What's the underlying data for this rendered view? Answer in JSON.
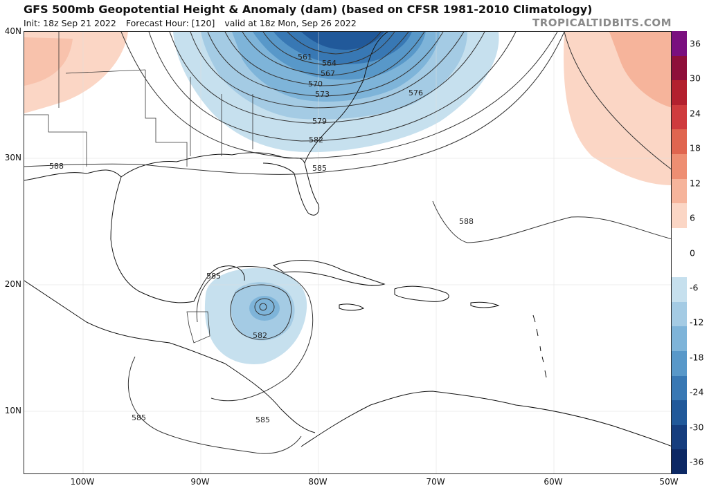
{
  "header": {
    "title": "GFS 500mb Geopotential Height & Anomaly (dam) (based on CFSR 1981-2010 Climatology)",
    "init": "Init: 18z Sep 21 2022",
    "forecast_hour": "Forecast Hour: [120]",
    "valid": "valid at 18z Mon, Sep 26 2022",
    "brand": "TROPICALTIDBITS.COM"
  },
  "axes": {
    "lat_labels": [
      "40N",
      "30N",
      "20N",
      "10N"
    ],
    "lon_labels": [
      "100W",
      "90W",
      "80W",
      "70W",
      "60W",
      "50W"
    ]
  },
  "colorbar": {
    "labels": [
      "36",
      "30",
      "24",
      "18",
      "12",
      "6",
      "0",
      "-6",
      "-12",
      "-18",
      "-24",
      "-30",
      "-36"
    ],
    "colors": [
      "#7a0f7f",
      "#8e0f3a",
      "#b3202e",
      "#cf3b3d",
      "#e0654f",
      "#ee8e72",
      "#f6b49b",
      "#fbd6c5",
      "#ffffff",
      "#ffffff",
      "#c6e0ee",
      "#a4cbe4",
      "#7eb4d9",
      "#5898c9",
      "#3878b4",
      "#21599a",
      "#153d7e",
      "#0c2864"
    ]
  },
  "contour_labels": [
    "561",
    "564",
    "567",
    "570",
    "573",
    "576",
    "579",
    "582",
    "585",
    "588",
    "588",
    "585",
    "582",
    "585",
    "585"
  ]
}
